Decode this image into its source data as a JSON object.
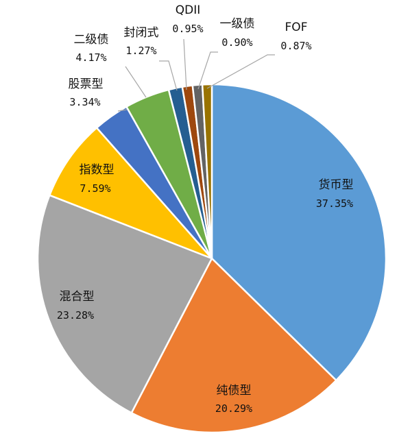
{
  "chart_data": {
    "type": "pie",
    "title": "",
    "legend": "none",
    "slices": [
      {
        "label": "货币型",
        "value": 37.35,
        "text": "37.35%",
        "color": "#5B9BD5"
      },
      {
        "label": "纯债型",
        "value": 20.29,
        "text": "20.29%",
        "color": "#ED7D31"
      },
      {
        "label": "混合型",
        "value": 23.28,
        "text": "23.28%",
        "color": "#A5A5A5"
      },
      {
        "label": "指数型",
        "value": 7.59,
        "text": "7.59%",
        "color": "#FFC000"
      },
      {
        "label": "股票型",
        "value": 3.34,
        "text": "3.34%",
        "color": "#4472C4"
      },
      {
        "label": "二级债",
        "value": 4.17,
        "text": "4.17%",
        "color": "#70AD47"
      },
      {
        "label": "封闭式",
        "value": 1.27,
        "text": "1.27%",
        "color": "#255E91"
      },
      {
        "label": "QDII",
        "value": 0.95,
        "text": "0.95%",
        "color": "#9E480E"
      },
      {
        "label": "一级债",
        "value": 0.9,
        "text": "0.90%",
        "color": "#636363"
      },
      {
        "label": "FOF",
        "value": 0.87,
        "text": "0.87%",
        "color": "#997300"
      }
    ]
  }
}
